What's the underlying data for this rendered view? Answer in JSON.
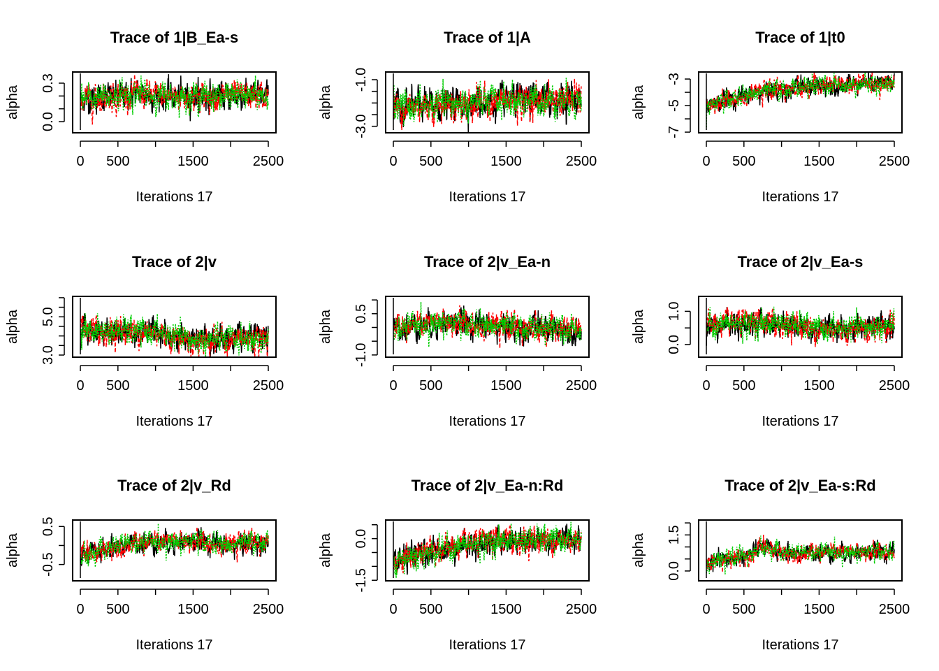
{
  "chart_data": {
    "type": "line",
    "layout": "3x3 grid of MCMC trace plots",
    "chain_colors": [
      "#000000",
      "#FF0000",
      "#00CD00"
    ],
    "chain_styles": [
      "solid",
      "dashed",
      "dotted"
    ],
    "x_ticks": [
      0,
      500,
      1000,
      1500,
      2000,
      2500
    ],
    "x_tick_labels": [
      "0",
      "500",
      "",
      "1500",
      "",
      "2500"
    ],
    "xlim": [
      0,
      2500
    ],
    "panels": [
      {
        "title": "Trace of 1|B_Ea-s",
        "xlabel": "Iterations 17",
        "ylabel": "alpha",
        "ylim": [
          -0.087,
          0.387
        ],
        "y_ticks": [
          0.0,
          0.1,
          0.2,
          0.3
        ],
        "y_tick_labels": [
          "0.0",
          "",
          "",
          "0.3"
        ],
        "mean_path": [
          [
            0,
            0.17
          ],
          [
            800,
            0.22
          ],
          [
            1000,
            0.2
          ],
          [
            2500,
            0.2
          ]
        ],
        "sd": 0.05
      },
      {
        "title": "Trace of 1|A",
        "xlabel": "Iterations 17",
        "ylabel": "alpha",
        "ylim": [
          -3.28,
          -0.67
        ],
        "y_ticks": [
          -3.0,
          -2.5,
          -2.0,
          -1.5,
          -1.0
        ],
        "y_tick_labels": [
          "-3.0",
          "",
          "",
          "",
          "-1.0"
        ],
        "mean_path": [
          [
            0,
            -2.2
          ],
          [
            1000,
            -2.0
          ],
          [
            2500,
            -1.8
          ]
        ],
        "sd": 0.32
      },
      {
        "title": "Trace of 1|t0",
        "xlabel": "Iterations 17",
        "ylabel": "alpha",
        "ylim": [
          -7.05,
          -2.47
        ],
        "y_ticks": [
          -7,
          -6,
          -5,
          -4,
          -3
        ],
        "y_tick_labels": [
          "-7",
          "",
          "-5",
          "",
          "-3"
        ],
        "mean_path": [
          [
            0,
            -5.0
          ],
          [
            700,
            -4.0
          ],
          [
            1500,
            -3.5
          ],
          [
            2500,
            -3.3
          ]
        ],
        "sd": 0.33
      },
      {
        "title": "Trace of 2|v",
        "xlabel": "Iterations 17",
        "ylabel": "alpha",
        "ylim": [
          2.89,
          6.07
        ],
        "y_ticks": [
          3.0,
          3.5,
          4.0,
          4.5,
          5.0,
          5.5,
          6.0
        ],
        "y_tick_labels": [
          "3.0",
          "",
          "",
          "",
          "5.0",
          "",
          ""
        ],
        "mean_path": [
          [
            0,
            4.3
          ],
          [
            1000,
            4.2
          ],
          [
            1500,
            3.75
          ],
          [
            2500,
            3.85
          ]
        ],
        "sd": 0.33
      },
      {
        "title": "Trace of 2|v_Ea-n",
        "xlabel": "Iterations 17",
        "ylabel": "alpha",
        "ylim": [
          -1.08,
          1.13
        ],
        "y_ticks": [
          -1.0,
          -0.5,
          0.0,
          0.5,
          1.0
        ],
        "y_tick_labels": [
          "-1.0",
          "",
          "",
          "0.5",
          ""
        ],
        "mean_path": [
          [
            0,
            -0.05
          ],
          [
            700,
            0.2
          ],
          [
            1500,
            0.0
          ],
          [
            2500,
            -0.1
          ]
        ],
        "sd": 0.22
      },
      {
        "title": "Trace of 2|v_Ea-s",
        "xlabel": "Iterations 17",
        "ylabel": "alpha",
        "ylim": [
          -0.38,
          1.45
        ],
        "y_ticks": [
          0.0,
          0.5,
          1.0
        ],
        "y_tick_labels": [
          "0.0",
          "",
          "1.0"
        ],
        "mean_path": [
          [
            0,
            0.6
          ],
          [
            1000,
            0.65
          ],
          [
            1500,
            0.45
          ],
          [
            2500,
            0.55
          ]
        ],
        "sd": 0.18
      },
      {
        "title": "Trace of 2|v_Rd",
        "xlabel": "Iterations 17",
        "ylabel": "alpha",
        "ylim": [
          -0.93,
          0.67
        ],
        "y_ticks": [
          -0.5,
          0.0,
          0.5
        ],
        "y_tick_labels": [
          "-0.5",
          "",
          "0.5"
        ],
        "mean_path": [
          [
            0,
            -0.3
          ],
          [
            600,
            0.05
          ],
          [
            1500,
            0.12
          ],
          [
            2000,
            0.0
          ],
          [
            2500,
            0.12
          ]
        ],
        "sd": 0.13
      },
      {
        "title": "Trace of 2|v_Ea-n:Rd",
        "xlabel": "Iterations 17",
        "ylabel": "alpha",
        "ylim": [
          -1.52,
          0.67
        ],
        "y_ticks": [
          -1.5,
          -1.0,
          -0.5,
          0.0,
          0.5
        ],
        "y_tick_labels": [
          "-1.5",
          "",
          "",
          "0.0",
          ""
        ],
        "mean_path": [
          [
            0,
            -0.8
          ],
          [
            700,
            -0.35
          ],
          [
            1500,
            -0.05
          ],
          [
            2500,
            -0.05
          ]
        ],
        "sd": 0.22
      },
      {
        "title": "Trace of 2|v_Ea-s:Rd",
        "xlabel": "Iterations 17",
        "ylabel": "alpha",
        "ylim": [
          -0.41,
          2.12
        ],
        "y_ticks": [
          0.0,
          0.5,
          1.0,
          1.5,
          2.0
        ],
        "y_tick_labels": [
          "0.0",
          "",
          "",
          "1.5",
          ""
        ],
        "mean_path": [
          [
            0,
            0.3
          ],
          [
            600,
            0.7
          ],
          [
            750,
            1.0
          ],
          [
            1000,
            0.75
          ],
          [
            2500,
            0.8
          ]
        ],
        "sd": 0.17
      }
    ]
  }
}
